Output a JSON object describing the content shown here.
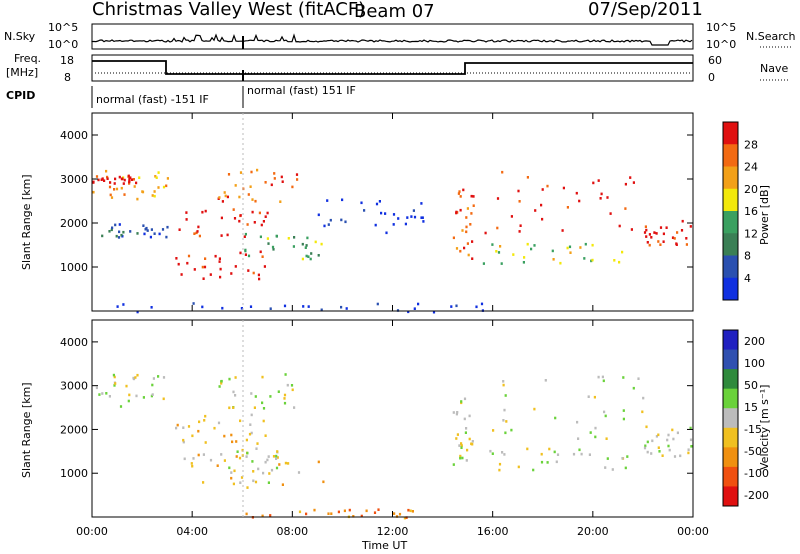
{
  "header": {
    "station": "Christmas Valley West (fitACF)",
    "beam": "Beam 07",
    "date": "07/Sep/2011"
  },
  "top_panel": {
    "left_label": "N.Sky",
    "right_label": "N.Search",
    "left_ticks": [
      "10^5",
      "10^0"
    ],
    "right_ticks": [
      "10^5",
      "10^0"
    ]
  },
  "freq_panel": {
    "left_label_line1": "Freq.",
    "left_label_line2": "[MHz]",
    "left_ticks": [
      "18",
      "8"
    ],
    "right_label": "Nave",
    "right_ticks": [
      "60",
      "0"
    ],
    "cpid_label": "CPID",
    "mode_1": "normal (fast) -151 IF",
    "mode_2": "normal (fast) 151 IF"
  },
  "colors": {
    "power": [
      "#1030e0",
      "#2a50b0",
      "#3a7f55",
      "#3aa060",
      "#f3e80a",
      "#f3a018",
      "#f36a12",
      "#e01010"
    ],
    "velocity": [
      "#2020c0",
      "#3050b0",
      "#2f8a3c",
      "#6ad23a",
      "#bcbcbc",
      "#f0c020",
      "#f09010",
      "#f05010",
      "#e01010"
    ]
  },
  "chart_data": [
    {
      "type": "heatmap",
      "name": "power_panel",
      "ylabel": "Slant Range [km]",
      "y_ticks": [
        "1000",
        "2000",
        "3000",
        "4000"
      ],
      "ylim": [
        0,
        4500
      ],
      "xlim": [
        0,
        24
      ],
      "x_ticks": [
        "00:00",
        "04:00",
        "08:00",
        "12:00",
        "16:00",
        "20:00",
        "00:00"
      ],
      "colorbar_label": "Power [dB]",
      "colorbar_ticks": [
        "4",
        "8",
        "12",
        "16",
        "20",
        "24",
        "28"
      ],
      "scatter_bands": [
        {
          "t0": 0.0,
          "t1": 3.0,
          "r0": 2500,
          "r1": 3300,
          "level": 5
        },
        {
          "t0": 0.0,
          "t1": 1.8,
          "r0": 2900,
          "r1": 3100,
          "level": 7
        },
        {
          "t0": 0.0,
          "t1": 3.0,
          "r0": 1700,
          "r1": 2000,
          "level": 1
        },
        {
          "t0": 3.3,
          "t1": 7.0,
          "r0": 1700,
          "r1": 2400,
          "level": 7
        },
        {
          "t0": 5.0,
          "t1": 8.2,
          "r0": 2500,
          "r1": 3300,
          "level": 6
        },
        {
          "t0": 3.3,
          "t1": 7.0,
          "r0": 700,
          "r1": 1400,
          "level": 7
        },
        {
          "t0": 6.0,
          "t1": 9.2,
          "r0": 1200,
          "r1": 1800,
          "level": 3
        },
        {
          "t0": 14.4,
          "t1": 15.2,
          "r0": 1200,
          "r1": 2800,
          "level": 6
        },
        {
          "t0": 15.6,
          "t1": 22.0,
          "r0": 1800,
          "r1": 3300,
          "level": 7
        },
        {
          "t0": 15.6,
          "t1": 21.5,
          "r0": 1100,
          "r1": 1600,
          "level": 4
        },
        {
          "t0": 22.0,
          "t1": 24.0,
          "r0": 1400,
          "r1": 2100,
          "level": 7
        },
        {
          "t0": 0.0,
          "t1": 16.0,
          "r0": 0,
          "r1": 200,
          "level": 0
        },
        {
          "t0": 9.0,
          "t1": 13.5,
          "r0": 1800,
          "r1": 2600,
          "level": 0
        }
      ]
    },
    {
      "type": "heatmap",
      "name": "velocity_panel",
      "ylabel": "Slant Range [km]",
      "y_ticks": [
        "1000",
        "2000",
        "3000",
        "4000"
      ],
      "ylim": [
        0,
        4500
      ],
      "xlim": [
        0,
        24
      ],
      "x_ticks": [
        "00:00",
        "04:00",
        "08:00",
        "12:00",
        "16:00",
        "20:00",
        "00:00"
      ],
      "xlabel": "Time UT",
      "colorbar_label": "Velocity [m s⁻¹]",
      "colorbar_ticks": [
        "200",
        "100",
        "50",
        "15",
        "-15",
        "-50",
        "-100",
        "-200"
      ],
      "scatter_bands": [
        {
          "t0": 0.0,
          "t1": 3.0,
          "r0": 2500,
          "r1": 3300,
          "level": 4
        },
        {
          "t0": 3.3,
          "t1": 7.0,
          "r0": 1700,
          "r1": 2400,
          "level": 5
        },
        {
          "t0": 5.0,
          "t1": 8.2,
          "r0": 2500,
          "r1": 3300,
          "level": 4
        },
        {
          "t0": 3.3,
          "t1": 9.2,
          "r0": 700,
          "r1": 1500,
          "level": 5
        },
        {
          "t0": 5.2,
          "t1": 7.8,
          "r0": 800,
          "r1": 1600,
          "level": 4
        },
        {
          "t0": 14.4,
          "t1": 15.2,
          "r0": 1200,
          "r1": 2800,
          "level": 4
        },
        {
          "t0": 15.6,
          "t1": 22.0,
          "r0": 1800,
          "r1": 3300,
          "level": 4
        },
        {
          "t0": 15.6,
          "t1": 21.5,
          "r0": 1100,
          "r1": 1600,
          "level": 4
        },
        {
          "t0": 22.0,
          "t1": 24.0,
          "r0": 1400,
          "r1": 2100,
          "level": 4
        },
        {
          "t0": 6.0,
          "t1": 13.5,
          "r0": 0,
          "r1": 200,
          "level": 6
        }
      ]
    }
  ]
}
